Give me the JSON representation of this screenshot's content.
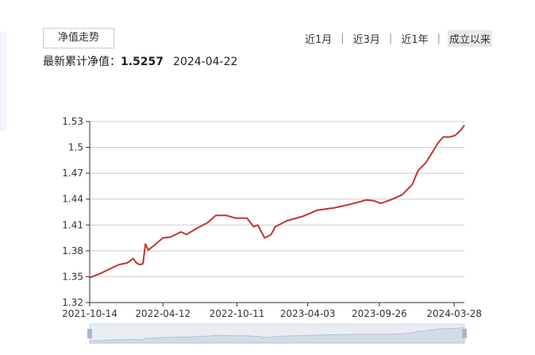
{
  "header": {
    "tab": "净值走势",
    "ranges": [
      "近1月",
      "近3月",
      "近1年",
      "成立以来"
    ],
    "selected_range": 3,
    "nav_label": "最新累计净值：",
    "nav_value": "1.5257",
    "nav_date": "2024-04-22"
  },
  "chart_data": {
    "type": "line",
    "color": "#c23531",
    "x": [
      "2021-10-14",
      "2021-11-06",
      "2021-12-06",
      "2021-12-25",
      "2022-01-14",
      "2022-01-29",
      "2022-02-06",
      "2022-02-14",
      "2022-02-22",
      "2022-02-28",
      "2022-03-07",
      "2022-03-23",
      "2022-04-12",
      "2022-05-01",
      "2022-05-26",
      "2022-06-09",
      "2022-07-08",
      "2022-08-01",
      "2022-08-20",
      "2022-09-15",
      "2022-10-07",
      "2022-11-05",
      "2022-11-21",
      "2022-12-01",
      "2022-12-18",
      "2023-01-03",
      "2023-01-13",
      "2023-02-11",
      "2023-03-22",
      "2023-04-26",
      "2023-06-08",
      "2023-07-17",
      "2023-08-25",
      "2023-09-14",
      "2023-09-29",
      "2023-10-23",
      "2023-11-21",
      "2023-12-16",
      "2023-12-30",
      "2024-01-18",
      "2024-02-03",
      "2024-02-17",
      "2024-03-01",
      "2024-03-17",
      "2024-03-31",
      "2024-04-15",
      "2024-04-22"
    ],
    "values": [
      1.349,
      1.353,
      1.36,
      1.364,
      1.366,
      1.371,
      1.366,
      1.364,
      1.365,
      1.388,
      1.381,
      1.387,
      1.395,
      1.396,
      1.402,
      1.399,
      1.407,
      1.413,
      1.421,
      1.421,
      1.418,
      1.418,
      1.408,
      1.41,
      1.395,
      1.399,
      1.408,
      1.415,
      1.42,
      1.427,
      1.43,
      1.434,
      1.439,
      1.438,
      1.435,
      1.439,
      1.445,
      1.457,
      1.473,
      1.482,
      1.494,
      1.505,
      1.512,
      1.512,
      1.514,
      1.521,
      1.5257
    ],
    "xlim": [
      "2021-10-14",
      "2024-04-22"
    ],
    "xticks": [
      "2021-10-14",
      "2022-04-12",
      "2022-10-11",
      "2023-04-03",
      "2023-09-26",
      "2024-03-28"
    ],
    "ylim": [
      1.32,
      1.53
    ],
    "yticks": [
      1.32,
      1.35,
      1.38,
      1.41,
      1.44,
      1.47,
      1.5,
      1.53
    ],
    "grid": true
  }
}
